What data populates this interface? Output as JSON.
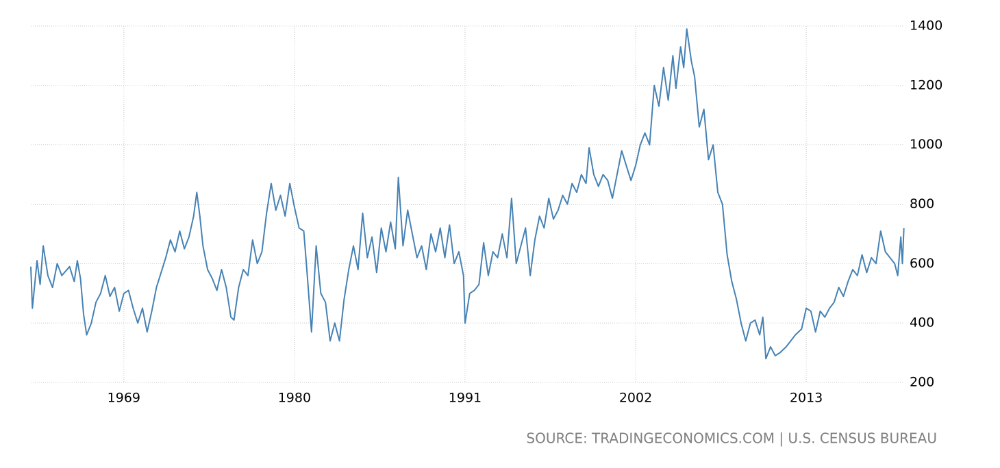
{
  "chart_data": {
    "type": "line",
    "source": "SOURCE: TRADINGECONOMICS.COM | U.S. CENSUS BUREAU",
    "xlim": [
      1963,
      2019.4
    ],
    "xticks": [
      1969,
      1980,
      1991,
      2002,
      2013
    ],
    "ylim": [
      200,
      1400
    ],
    "yticks": [
      200,
      400,
      600,
      800,
      1000,
      1200,
      1400
    ],
    "grid": true,
    "series": [
      {
        "color": "#4682b4",
        "x": [
          1963.0,
          1963.1,
          1963.4,
          1963.6,
          1963.8,
          1964.1,
          1964.4,
          1964.7,
          1965.0,
          1965.5,
          1965.8,
          1966.0,
          1966.2,
          1966.4,
          1966.6,
          1966.9,
          1967.2,
          1967.5,
          1967.8,
          1968.1,
          1968.4,
          1968.7,
          1969.0,
          1969.3,
          1969.6,
          1969.9,
          1970.2,
          1970.5,
          1970.8,
          1971.1,
          1971.4,
          1971.7,
          1972.0,
          1972.3,
          1972.6,
          1972.9,
          1973.2,
          1973.5,
          1973.7,
          1973.9,
          1974.1,
          1974.4,
          1974.7,
          1975.0,
          1975.3,
          1975.6,
          1975.9,
          1976.1,
          1976.4,
          1976.7,
          1977.0,
          1977.3,
          1977.6,
          1977.9,
          1978.2,
          1978.5,
          1978.8,
          1979.1,
          1979.4,
          1979.7,
          1980.0,
          1980.3,
          1980.6,
          1980.8,
          1981.1,
          1981.4,
          1981.7,
          1982.0,
          1982.3,
          1982.6,
          1982.9,
          1983.2,
          1983.5,
          1983.8,
          1984.1,
          1984.4,
          1984.7,
          1985.0,
          1985.3,
          1985.6,
          1985.9,
          1986.2,
          1986.5,
          1986.7,
          1987.0,
          1987.3,
          1987.6,
          1987.9,
          1988.2,
          1988.5,
          1988.8,
          1989.1,
          1989.4,
          1989.7,
          1990.0,
          1990.3,
          1990.6,
          1990.9,
          1991.0,
          1991.3,
          1991.6,
          1991.9,
          1992.2,
          1992.5,
          1992.8,
          1993.1,
          1993.4,
          1993.7,
          1994.0,
          1994.3,
          1994.6,
          1994.9,
          1995.2,
          1995.5,
          1995.8,
          1996.1,
          1996.4,
          1996.7,
          1997.0,
          1997.3,
          1997.6,
          1997.9,
          1998.2,
          1998.5,
          1998.8,
          1999.0,
          1999.3,
          1999.6,
          1999.9,
          2000.2,
          2000.5,
          2000.8,
          2001.1,
          2001.4,
          2001.7,
          2002.0,
          2002.3,
          2002.6,
          2002.9,
          2003.2,
          2003.5,
          2003.8,
          2004.1,
          2004.4,
          2004.6,
          2004.9,
          2005.1,
          2005.3,
          2005.6,
          2005.8,
          2006.1,
          2006.4,
          2006.7,
          2007.0,
          2007.3,
          2007.6,
          2007.9,
          2008.2,
          2008.5,
          2008.8,
          2009.1,
          2009.4,
          2009.7,
          2010.0,
          2010.2,
          2010.4,
          2010.7,
          2011.0,
          2011.3,
          2011.7,
          2012.0,
          2012.3,
          2012.7,
          2013.0,
          2013.3,
          2013.6,
          2013.9,
          2014.2,
          2014.5,
          2014.8,
          2015.1,
          2015.4,
          2015.7,
          2016.0,
          2016.3,
          2016.6,
          2016.9,
          2017.2,
          2017.5,
          2017.8,
          2018.1,
          2018.4,
          2018.7,
          2018.9,
          2019.1,
          2019.2,
          2019.3
        ],
        "values": [
          590,
          450,
          610,
          530,
          660,
          560,
          520,
          600,
          560,
          590,
          540,
          610,
          550,
          430,
          360,
          400,
          470,
          500,
          560,
          490,
          520,
          440,
          500,
          510,
          450,
          400,
          450,
          370,
          440,
          520,
          570,
          620,
          680,
          640,
          710,
          650,
          690,
          760,
          840,
          760,
          660,
          580,
          550,
          510,
          580,
          520,
          420,
          410,
          520,
          580,
          560,
          680,
          600,
          640,
          770,
          870,
          780,
          830,
          760,
          870,
          790,
          720,
          710,
          580,
          370,
          660,
          500,
          470,
          340,
          400,
          340,
          480,
          580,
          660,
          580,
          770,
          620,
          690,
          570,
          720,
          640,
          740,
          650,
          890,
          660,
          780,
          700,
          620,
          660,
          580,
          700,
          640,
          720,
          620,
          730,
          600,
          640,
          560,
          400,
          500,
          510,
          530,
          670,
          560,
          640,
          620,
          700,
          620,
          820,
          600,
          660,
          720,
          560,
          680,
          760,
          720,
          820,
          750,
          780,
          830,
          800,
          870,
          840,
          900,
          870,
          990,
          900,
          860,
          900,
          880,
          820,
          900,
          980,
          930,
          880,
          930,
          1000,
          1040,
          1000,
          1200,
          1130,
          1260,
          1150,
          1300,
          1190,
          1330,
          1260,
          1390,
          1280,
          1230,
          1060,
          1120,
          950,
          1000,
          840,
          800,
          630,
          540,
          480,
          400,
          340,
          400,
          410,
          360,
          420,
          280,
          320,
          290,
          300,
          320,
          340,
          360,
          380,
          450,
          440,
          370,
          440,
          420,
          450,
          470,
          520,
          490,
          540,
          580,
          560,
          630,
          570,
          620,
          600,
          710,
          640,
          620,
          600,
          560,
          690,
          600,
          720
        ]
      }
    ]
  }
}
